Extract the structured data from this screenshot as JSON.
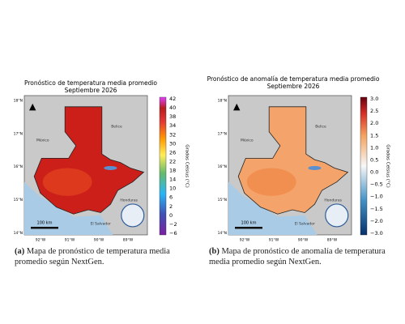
{
  "figures": [
    {
      "title": "Pronóstico de temperatura media promedio",
      "subtitle": "Septiembre 2026",
      "colorbar": {
        "label": "Grados Celsius (°C)",
        "ticks": [
          "42",
          "40",
          "38",
          "34",
          "32",
          "30",
          "26",
          "22",
          "18",
          "14",
          "10",
          "6",
          "2",
          "0",
          "−2",
          "−6"
        ]
      },
      "lat_labels": [
        "18°N",
        "17°N",
        "16°N",
        "15°N",
        "14°N"
      ],
      "lon_labels": [
        "92°W",
        "91°W",
        "90°W",
        "89°W"
      ],
      "place_labels": [
        "México",
        "Belice",
        "Honduras",
        "El Salvador"
      ],
      "scale": "100 km",
      "caption_tag": "(a)",
      "caption": "Mapa de pronóstico de temperatura media promedio según NextGen."
    },
    {
      "title": "Pronóstico de anomalía de temperatura media promedio",
      "subtitle": "Septiembre 2026",
      "colorbar": {
        "label": "Grados Celsius (°C)",
        "ticks": [
          "3.0",
          "2.5",
          "2.0",
          "1.5",
          "1.0",
          "0.5",
          "0.0",
          "−0.5",
          "−1.0",
          "−1.5",
          "−2.0",
          "−3.0"
        ]
      },
      "lat_labels": [
        "18°N",
        "17°N",
        "16°N",
        "15°N",
        "14°N"
      ],
      "lon_labels": [
        "92°W",
        "91°W",
        "90°W",
        "89°W"
      ],
      "place_labels": [
        "México",
        "Belice",
        "Honduras",
        "El Salvador"
      ],
      "scale": "100 km",
      "caption_tag": "(b)",
      "caption": "Mapa de pronóstico de anomalía de temperatura media promedio según NextGen."
    }
  ]
}
